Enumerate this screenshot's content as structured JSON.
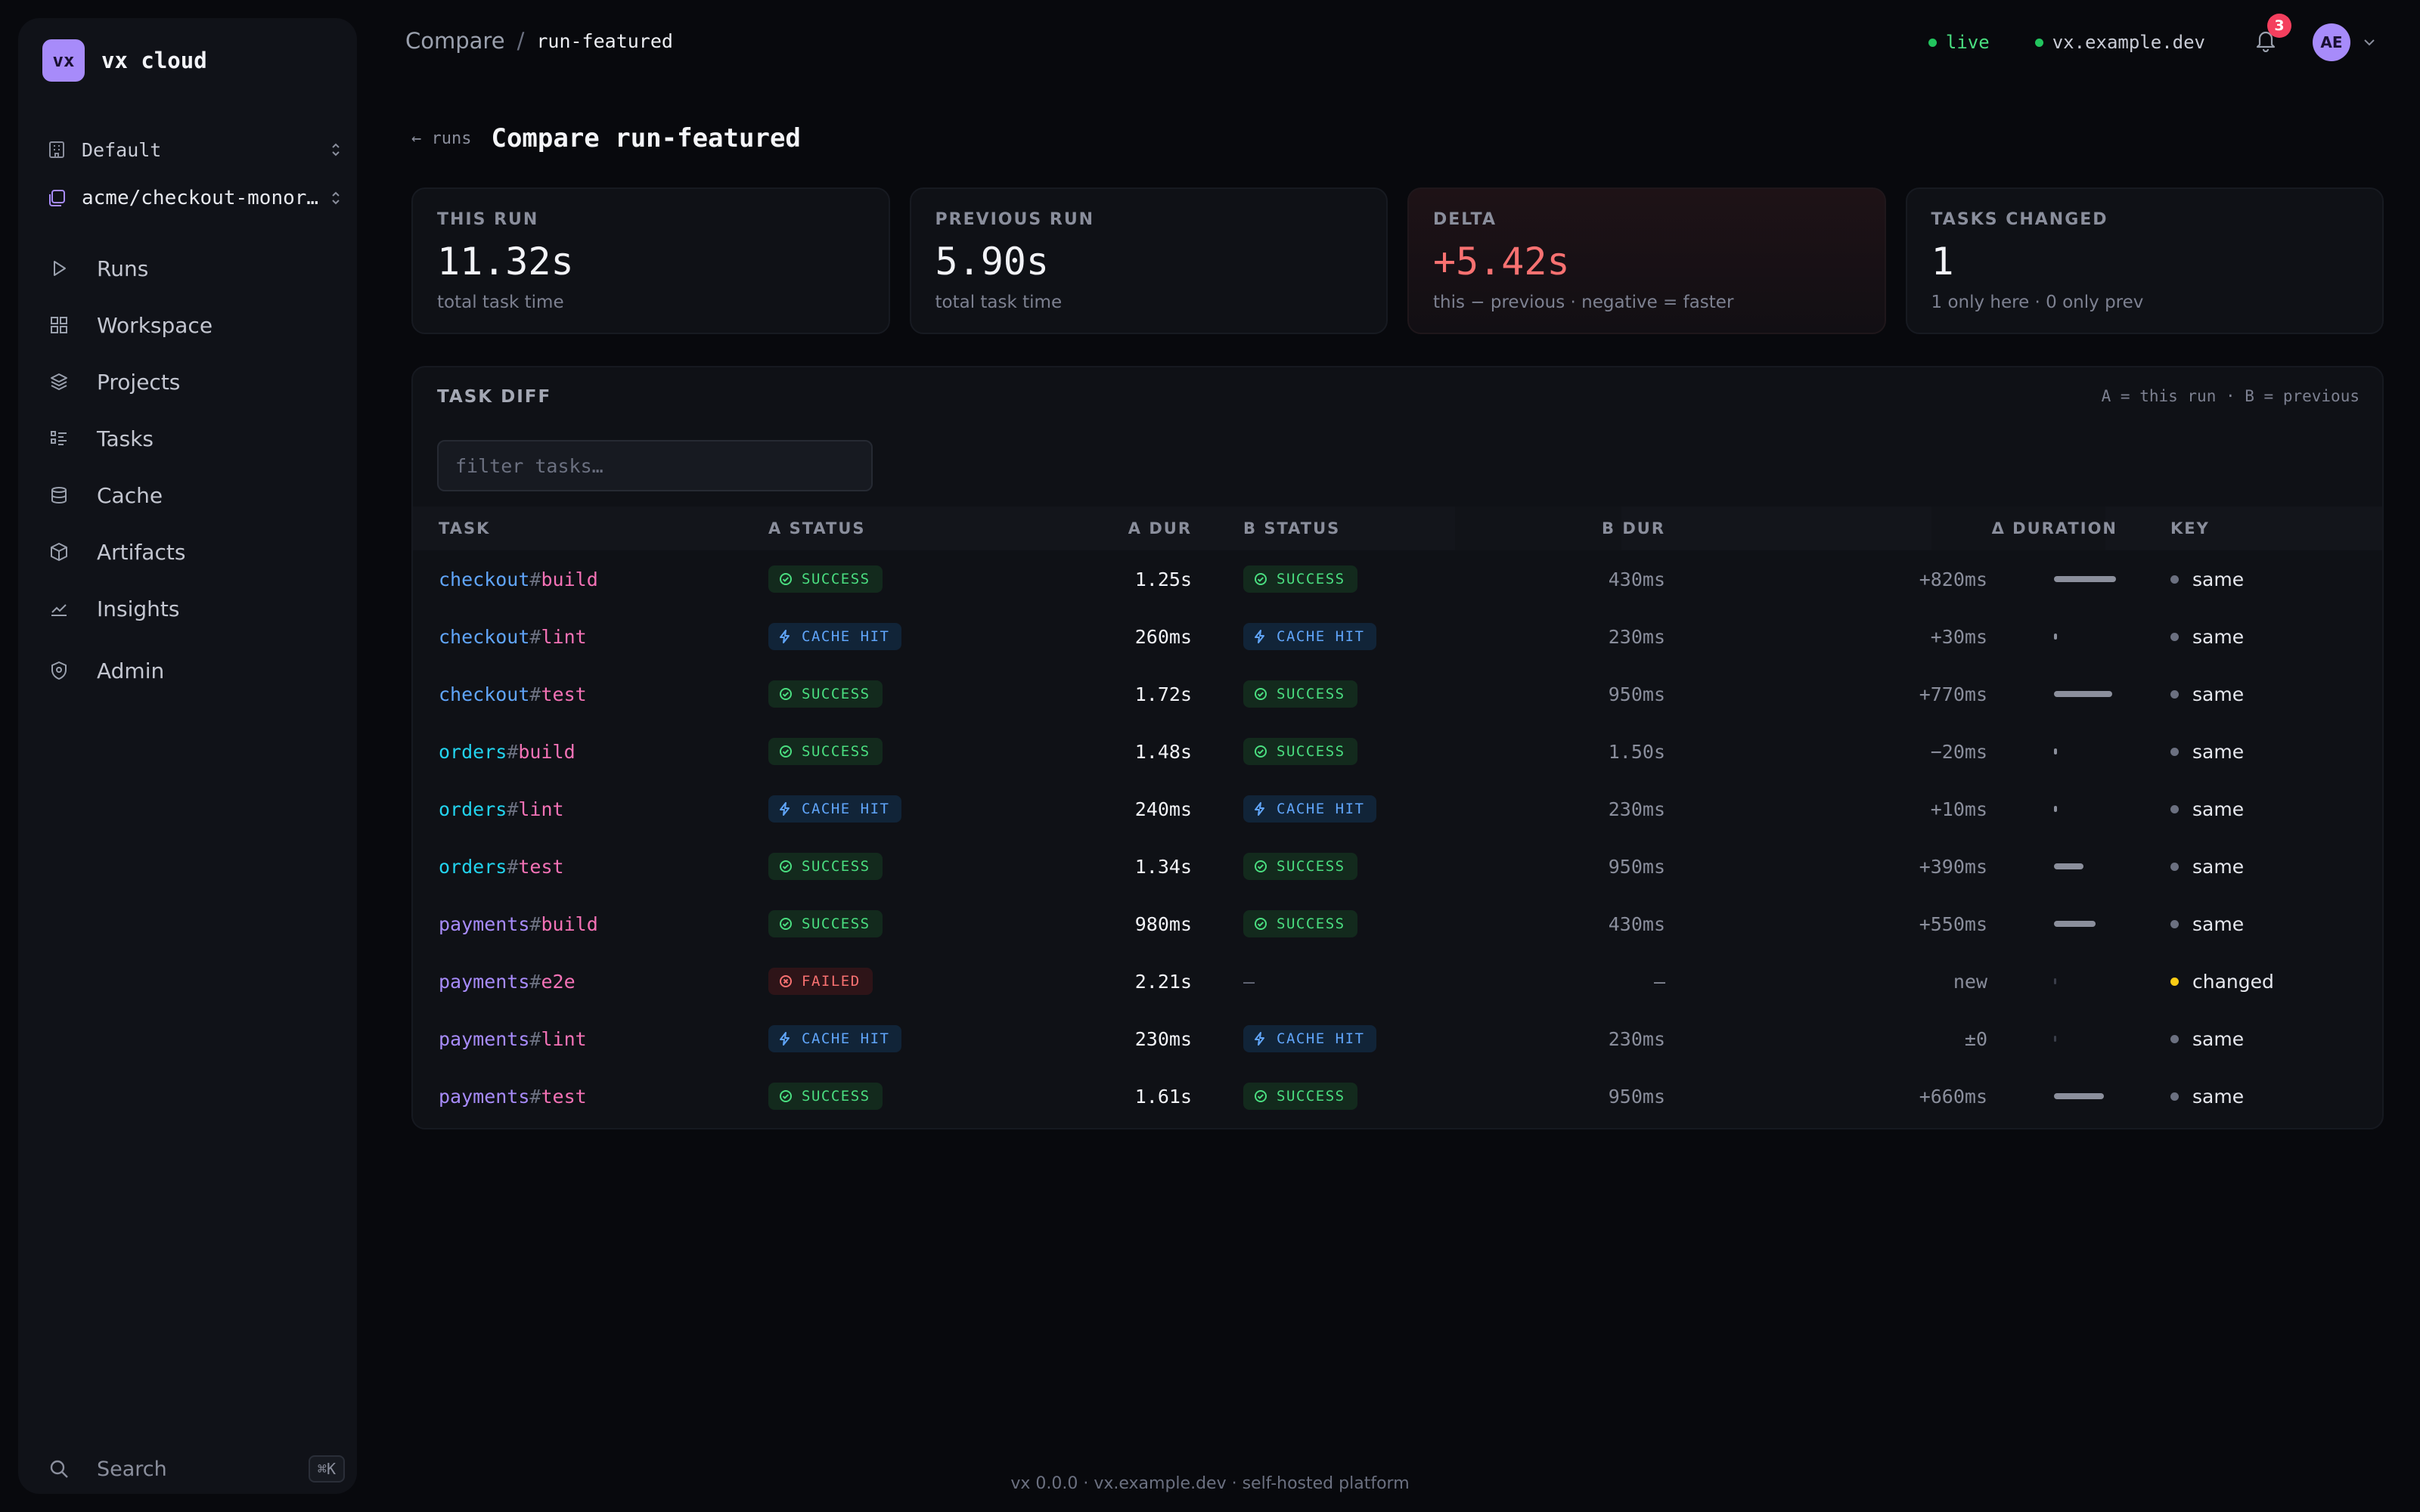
{
  "app": {
    "logo_text": "vx",
    "name": "vx cloud"
  },
  "org_selector": {
    "label": "Default",
    "icon": "building-icon"
  },
  "repo_selector": {
    "label": "acme/checkout-monorepo",
    "icon": "repo-icon"
  },
  "nav": [
    {
      "id": "runs",
      "label": "Runs",
      "icon": "play-icon"
    },
    {
      "id": "workspace",
      "label": "Workspace",
      "icon": "grid-icon"
    },
    {
      "id": "projects",
      "label": "Projects",
      "icon": "layers-icon"
    },
    {
      "id": "tasks",
      "label": "Tasks",
      "icon": "list-icon"
    },
    {
      "id": "cache",
      "label": "Cache",
      "icon": "database-icon"
    },
    {
      "id": "artifacts",
      "label": "Artifacts",
      "icon": "package-icon"
    },
    {
      "id": "insights",
      "label": "Insights",
      "icon": "chart-icon"
    },
    {
      "id": "admin",
      "label": "Admin",
      "icon": "shield-icon"
    }
  ],
  "sidebar_search": {
    "label": "Search",
    "shortcut": "⌘K"
  },
  "breadcrumb": {
    "parent": "Compare",
    "separator": "/",
    "current": "run-featured"
  },
  "topbar": {
    "live_label": "live",
    "host": "vx.example.dev",
    "notification_count": "3",
    "avatar_initials": "AE"
  },
  "page": {
    "back_label": "← runs",
    "title": "Compare run-featured"
  },
  "stats": {
    "this_run": {
      "label": "THIS RUN",
      "value": "11.32s",
      "sub": "total task time"
    },
    "previous_run": {
      "label": "PREVIOUS RUN",
      "value": "5.90s",
      "sub": "total task time"
    },
    "delta": {
      "label": "DELTA",
      "value": "+5.42s",
      "sub": "this − previous · negative = faster"
    },
    "tasks_changed": {
      "label": "TASKS CHANGED",
      "value": "1",
      "sub": "1 only here · 0 only prev"
    }
  },
  "diff": {
    "title": "TASK DIFF",
    "legend": "A = this run · B = previous",
    "filter_placeholder": "filter tasks…",
    "columns": {
      "task": "TASK",
      "a_status": "A STATUS",
      "a_dur": "A DUR",
      "b_status": "B STATUS",
      "b_dur": "B DUR",
      "delta": "Δ DURATION",
      "key": "KEY"
    },
    "rows": [
      {
        "project": "checkout",
        "hash": "#",
        "task": "build",
        "a_status": "SUCCESS",
        "a_dur": "1.25s",
        "b_status": "SUCCESS",
        "b_dur": "430ms",
        "delta": "+820ms",
        "delta_bar": 0.82,
        "key": "same"
      },
      {
        "project": "checkout",
        "hash": "#",
        "task": "lint",
        "a_status": "CACHE HIT",
        "a_dur": "260ms",
        "b_status": "CACHE HIT",
        "b_dur": "230ms",
        "delta": "+30ms",
        "delta_bar": 0.03,
        "key": "same"
      },
      {
        "project": "checkout",
        "hash": "#",
        "task": "test",
        "a_status": "SUCCESS",
        "a_dur": "1.72s",
        "b_status": "SUCCESS",
        "b_dur": "950ms",
        "delta": "+770ms",
        "delta_bar": 0.77,
        "key": "same"
      },
      {
        "project": "orders",
        "hash": "#",
        "task": "build",
        "a_status": "SUCCESS",
        "a_dur": "1.48s",
        "b_status": "SUCCESS",
        "b_dur": "1.50s",
        "delta": "−20ms",
        "delta_bar": 0.02,
        "key": "same"
      },
      {
        "project": "orders",
        "hash": "#",
        "task": "lint",
        "a_status": "CACHE HIT",
        "a_dur": "240ms",
        "b_status": "CACHE HIT",
        "b_dur": "230ms",
        "delta": "+10ms",
        "delta_bar": 0.01,
        "key": "same"
      },
      {
        "project": "orders",
        "hash": "#",
        "task": "test",
        "a_status": "SUCCESS",
        "a_dur": "1.34s",
        "b_status": "SUCCESS",
        "b_dur": "950ms",
        "delta": "+390ms",
        "delta_bar": 0.39,
        "key": "same"
      },
      {
        "project": "payments",
        "hash": "#",
        "task": "build",
        "a_status": "SUCCESS",
        "a_dur": "980ms",
        "b_status": "SUCCESS",
        "b_dur": "430ms",
        "delta": "+550ms",
        "delta_bar": 0.55,
        "key": "same"
      },
      {
        "project": "payments",
        "hash": "#",
        "task": "e2e",
        "a_status": "FAILED",
        "a_dur": "2.21s",
        "b_status": "—",
        "b_dur": "—",
        "delta": "new",
        "delta_bar": 0,
        "key": "changed"
      },
      {
        "project": "payments",
        "hash": "#",
        "task": "lint",
        "a_status": "CACHE HIT",
        "a_dur": "230ms",
        "b_status": "CACHE HIT",
        "b_dur": "230ms",
        "delta": "±0",
        "delta_bar": 0,
        "key": "same"
      },
      {
        "project": "payments",
        "hash": "#",
        "task": "test",
        "a_status": "SUCCESS",
        "a_dur": "1.61s",
        "b_status": "SUCCESS",
        "b_dur": "950ms",
        "delta": "+660ms",
        "delta_bar": 0.66,
        "key": "same"
      }
    ]
  },
  "colors": {
    "project_checkout": "#60a5fa",
    "project_orders": "#22d3ee",
    "project_payments": "#a78bfa",
    "task_name": "#f472b6",
    "key_same": "#6b7080",
    "key_changed": "#facc15"
  },
  "footer": "vx 0.0.0 · vx.example.dev · self-hosted platform"
}
